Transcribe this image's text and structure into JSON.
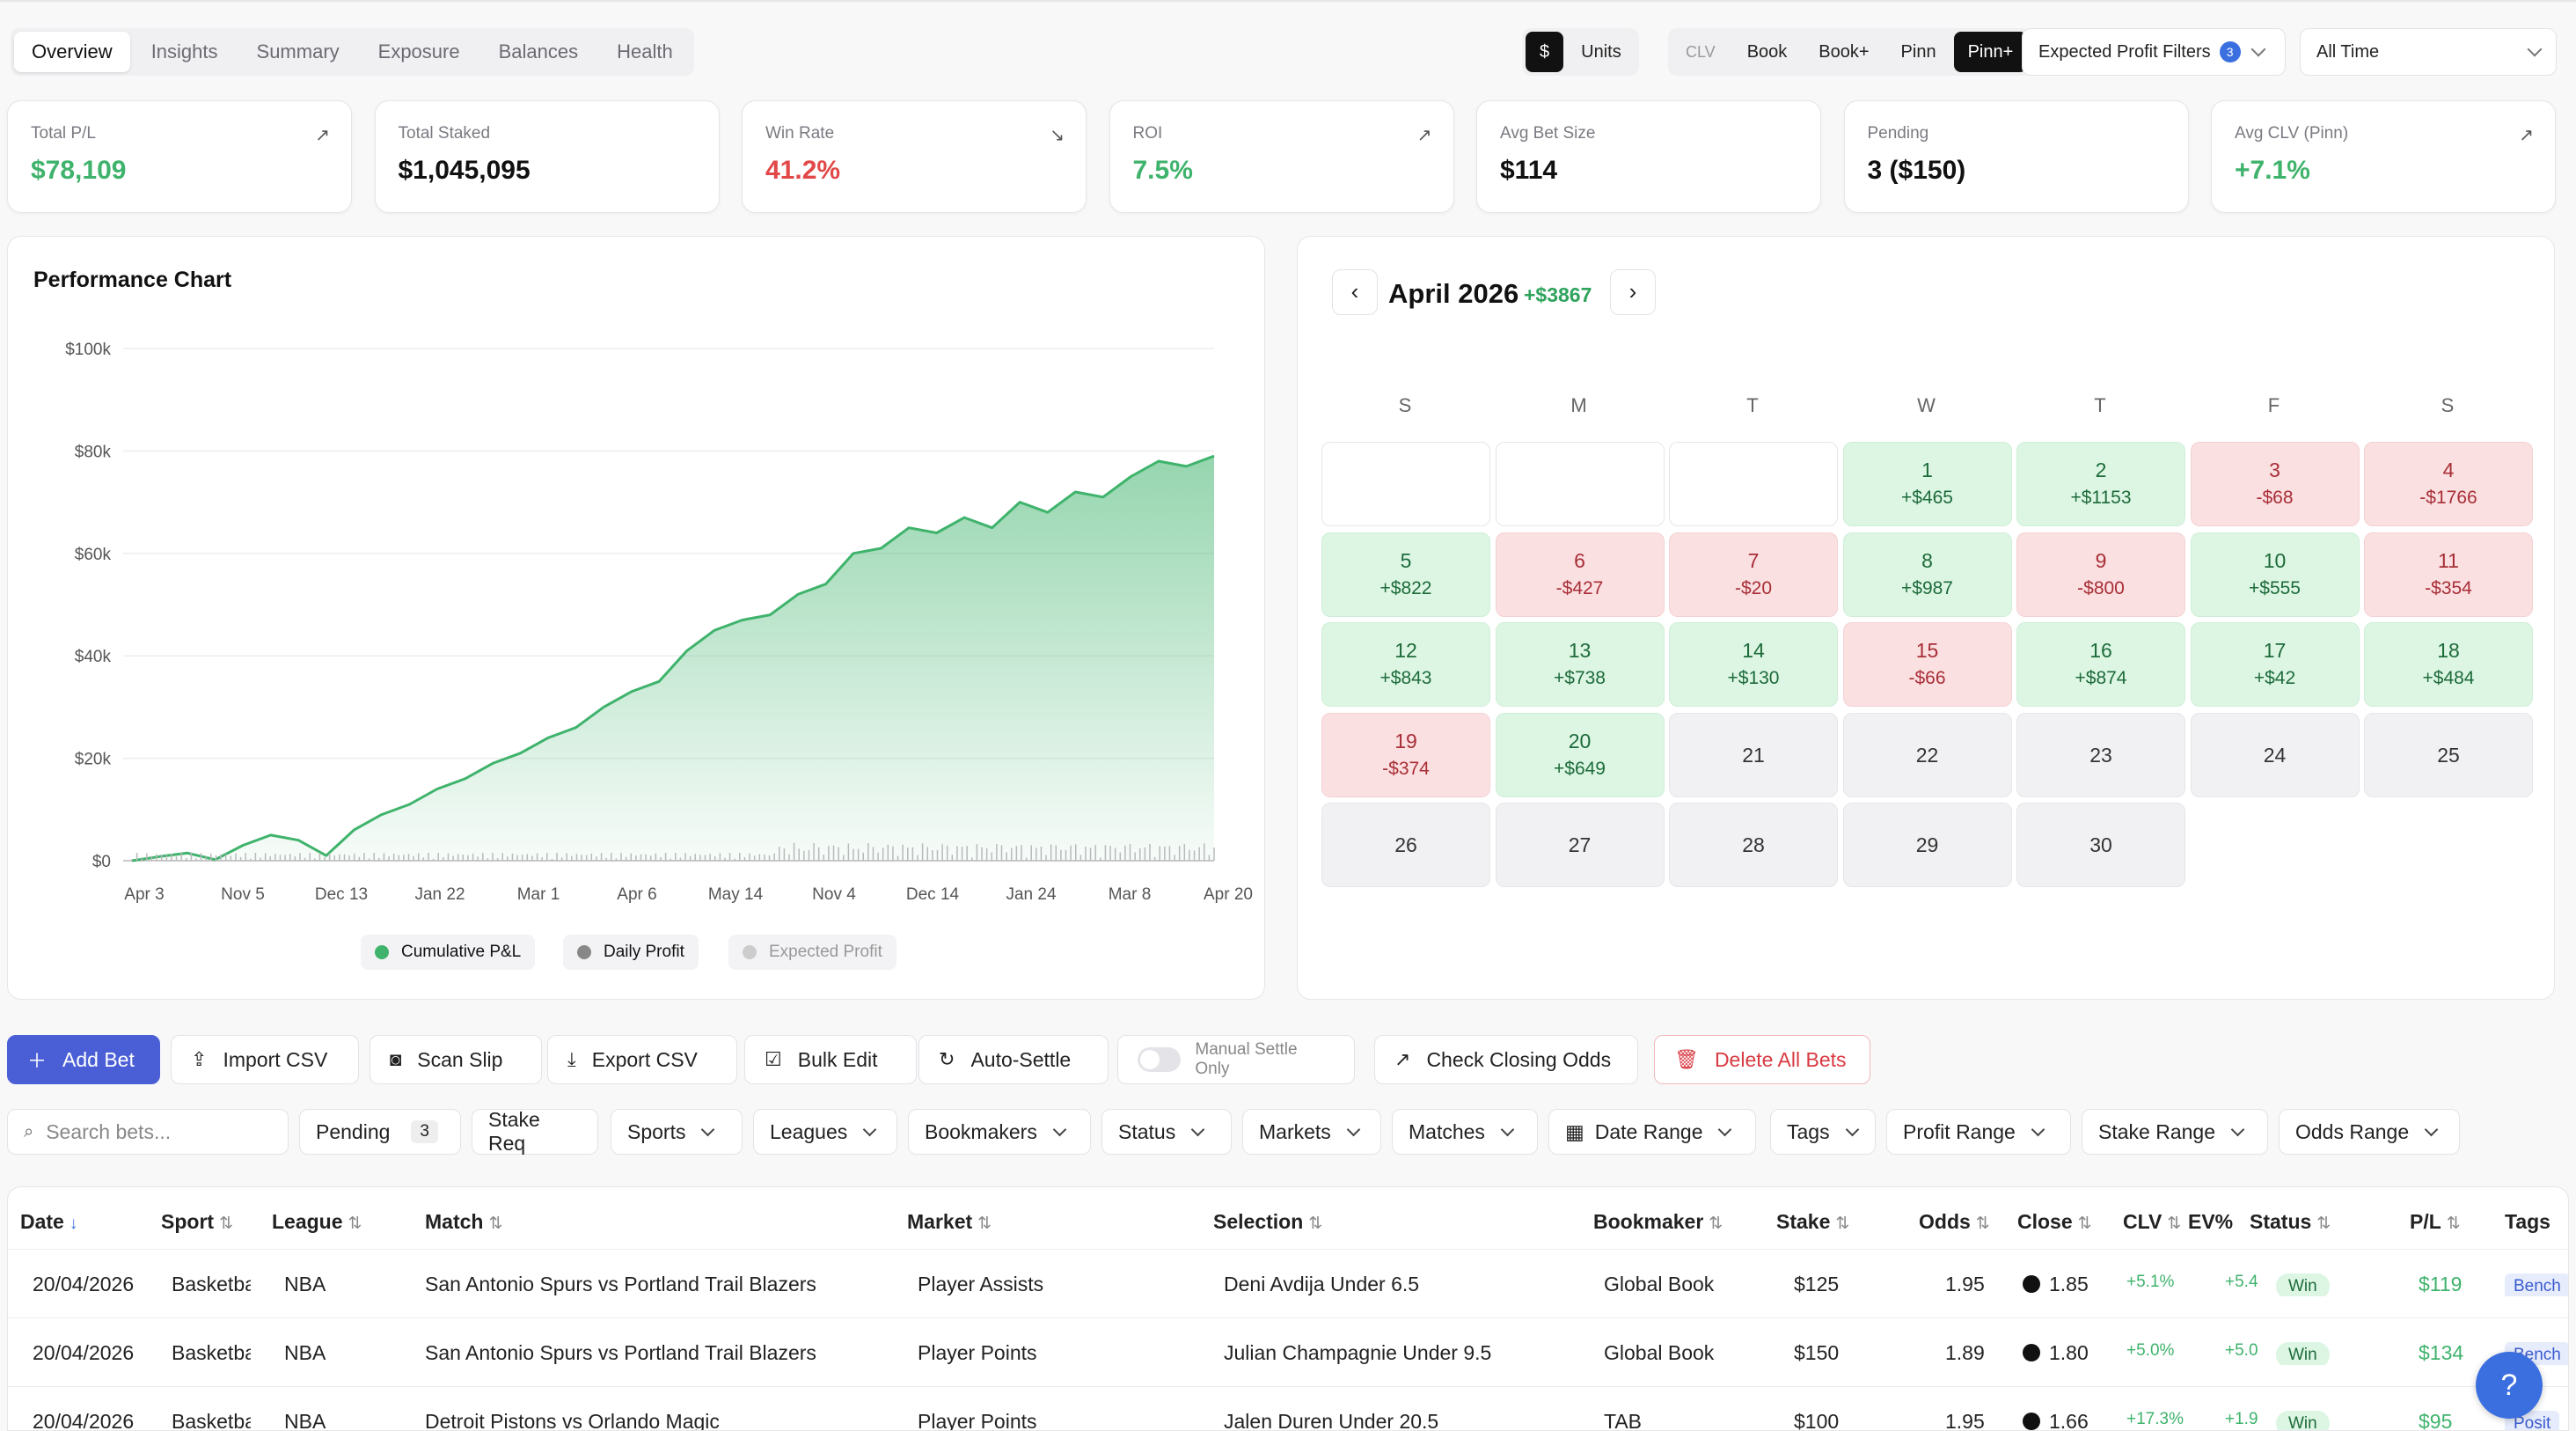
{
  "tabs": [
    "Overview",
    "Insights",
    "Summary",
    "Exposure",
    "Balances",
    "Health"
  ],
  "unit_toggle": {
    "dollar": "$",
    "units": "Units"
  },
  "clv_toggle": {
    "label": "CLV",
    "options": [
      "Book",
      "Book+",
      "Pinn",
      "Pinn+"
    ]
  },
  "expected_filter": {
    "label": "Expected Profit Filters",
    "count": "3"
  },
  "time_range": "All Time",
  "kpis": [
    {
      "label": "Total P/L",
      "value": "$78,109",
      "tone": "green",
      "trend": "up"
    },
    {
      "label": "Total Staked",
      "value": "$1,045,095",
      "tone": "plain",
      "trend": ""
    },
    {
      "label": "Win Rate",
      "value": "41.2%",
      "tone": "red",
      "trend": "down"
    },
    {
      "label": "ROI",
      "value": "7.5%",
      "tone": "green",
      "trend": "up"
    },
    {
      "label": "Avg Bet Size",
      "value": "$114",
      "tone": "plain",
      "trend": ""
    },
    {
      "label": "Pending",
      "value": "3 ($150)",
      "tone": "plain",
      "trend": ""
    },
    {
      "label": "Avg CLV (Pinn)",
      "value": "+7.1%",
      "tone": "green",
      "trend": "up"
    }
  ],
  "chart_title": "Performance Chart",
  "chart_data": {
    "type": "area",
    "x_tick_labels": [
      "Apr 3",
      "Nov 5",
      "Dec 13",
      "Jan 22",
      "Mar 1",
      "Apr 6",
      "May 14",
      "Nov 4",
      "Dec 14",
      "Jan 24",
      "Mar 8",
      "Apr 20"
    ],
    "y_tick_labels": [
      "$0",
      "$20k",
      "$40k",
      "$60k",
      "$80k",
      "$100k"
    ],
    "ylim": [
      0,
      100000
    ],
    "series": [
      {
        "name": "Cumulative P&L",
        "color": "#3fb36c",
        "values": [
          0,
          800,
          1500,
          200,
          3000,
          5000,
          4000,
          1000,
          6000,
          9000,
          11000,
          14000,
          16000,
          19000,
          21000,
          24000,
          26000,
          30000,
          33000,
          35000,
          41000,
          45000,
          47000,
          48000,
          52000,
          54000,
          60000,
          61000,
          65000,
          64000,
          67000,
          65000,
          70000,
          68000,
          72000,
          71000,
          75000,
          78000,
          77000,
          79000
        ]
      },
      {
        "name": "Daily Profit",
        "color": "#888888"
      },
      {
        "name": "Expected Profit",
        "color": "#cccccc"
      }
    ]
  },
  "calendar": {
    "month": "April 2026",
    "total": "+$3867",
    "weekdays": [
      "S",
      "M",
      "T",
      "W",
      "T",
      "F",
      "S"
    ],
    "days": [
      {
        "n": "",
        "a": "",
        "t": "empty"
      },
      {
        "n": "",
        "a": "",
        "t": "empty"
      },
      {
        "n": "",
        "a": "",
        "t": "empty"
      },
      {
        "n": "1",
        "a": "+$465",
        "t": "pos"
      },
      {
        "n": "2",
        "a": "+$1153",
        "t": "pos"
      },
      {
        "n": "3",
        "a": "-$68",
        "t": "neg"
      },
      {
        "n": "4",
        "a": "-$1766",
        "t": "neg"
      },
      {
        "n": "5",
        "a": "+$822",
        "t": "pos"
      },
      {
        "n": "6",
        "a": "-$427",
        "t": "neg"
      },
      {
        "n": "7",
        "a": "-$20",
        "t": "neg"
      },
      {
        "n": "8",
        "a": "+$987",
        "t": "pos"
      },
      {
        "n": "9",
        "a": "-$800",
        "t": "neg"
      },
      {
        "n": "10",
        "a": "+$555",
        "t": "pos"
      },
      {
        "n": "11",
        "a": "-$354",
        "t": "neg"
      },
      {
        "n": "12",
        "a": "+$843",
        "t": "pos"
      },
      {
        "n": "13",
        "a": "+$738",
        "t": "pos"
      },
      {
        "n": "14",
        "a": "+$130",
        "t": "pos"
      },
      {
        "n": "15",
        "a": "-$66",
        "t": "neg"
      },
      {
        "n": "16",
        "a": "+$874",
        "t": "pos"
      },
      {
        "n": "17",
        "a": "+$42",
        "t": "pos"
      },
      {
        "n": "18",
        "a": "+$484",
        "t": "pos"
      },
      {
        "n": "19",
        "a": "-$374",
        "t": "neg"
      },
      {
        "n": "20",
        "a": "+$649",
        "t": "pos"
      },
      {
        "n": "21",
        "a": "",
        "t": "plain"
      },
      {
        "n": "22",
        "a": "",
        "t": "plain"
      },
      {
        "n": "23",
        "a": "",
        "t": "plain"
      },
      {
        "n": "24",
        "a": "",
        "t": "plain"
      },
      {
        "n": "25",
        "a": "",
        "t": "plain"
      },
      {
        "n": "26",
        "a": "",
        "t": "plain"
      },
      {
        "n": "27",
        "a": "",
        "t": "plain"
      },
      {
        "n": "28",
        "a": "",
        "t": "plain"
      },
      {
        "n": "29",
        "a": "",
        "t": "plain"
      },
      {
        "n": "30",
        "a": "",
        "t": "plain"
      }
    ]
  },
  "toolbar": {
    "add": "Add Bet",
    "import": "Import CSV",
    "scan": "Scan Slip",
    "export": "Export CSV",
    "bulk": "Bulk Edit",
    "auto": "Auto-Settle",
    "manual": "Manual Settle Only",
    "closing": "Check Closing Odds",
    "delete": "Delete All Bets"
  },
  "filters": {
    "search_placeholder": "Search bets...",
    "pending": "Pending",
    "pending_count": "3",
    "items": [
      "Stake Req",
      "Sports",
      "Leagues",
      "Bookmakers",
      "Status",
      "Markets",
      "Matches",
      "Date Range",
      "Tags",
      "Profit Range",
      "Stake Range",
      "Odds Range"
    ]
  },
  "table": {
    "headers": [
      "Date",
      "Sport",
      "League",
      "Match",
      "Market",
      "Selection",
      "Bookmaker",
      "Stake",
      "Odds",
      "Close",
      "CLV",
      "EV%",
      "Status",
      "P/L",
      "Tags"
    ],
    "rows": [
      [
        "20/04/2026",
        "Basketball",
        "NBA",
        "San Antonio Spurs vs Portland Trail Blazers",
        "Player Assists",
        "Deni Avdija Under 6.5",
        "Global Book",
        "$125",
        "1.95",
        "1.85",
        "+5.1%",
        "+5.4",
        "Win",
        "$119",
        "Bench"
      ],
      [
        "20/04/2026",
        "Basketball",
        "NBA",
        "San Antonio Spurs vs Portland Trail Blazers",
        "Player Points",
        "Julian Champagnie Under 9.5",
        "Global Book",
        "$150",
        "1.89",
        "1.80",
        "+5.0%",
        "+5.0",
        "Win",
        "$134",
        "Bench"
      ],
      [
        "20/04/2026",
        "Basketball",
        "NBA",
        "Detroit Pistons vs Orlando Magic",
        "Player Points",
        "Jalen Duren Under 20.5",
        "TAB",
        "$100",
        "1.95",
        "1.66",
        "+17.3%",
        "+1.9",
        "Win",
        "$95",
        "Posit"
      ]
    ]
  },
  "help": "?"
}
